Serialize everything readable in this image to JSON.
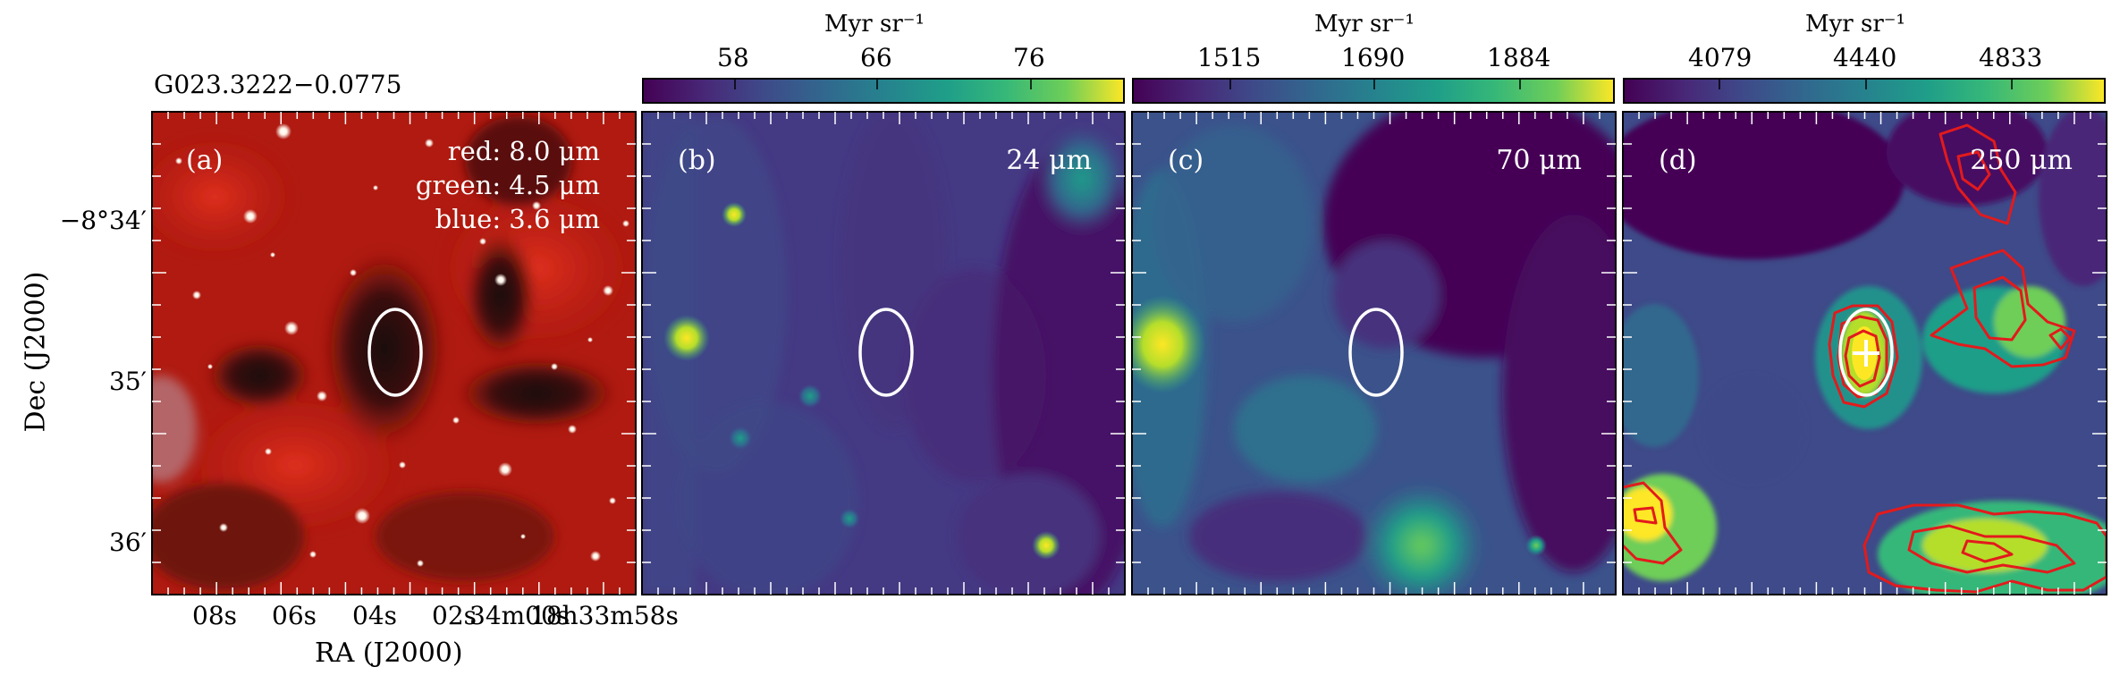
{
  "figure": {
    "source_name": "G023.3222−0.0775",
    "x_axis_label": "RA (J2000)",
    "y_axis_label": "Dec (J2000)",
    "ra_tick_labels": [
      "08s",
      "06s",
      "04s",
      "02s",
      "34m00s",
      "18h33m58s"
    ],
    "dec_tick_labels": [
      "−8°34′",
      "35′",
      "36′"
    ]
  },
  "panels": [
    {
      "letter": "(a)",
      "kind": "rgb",
      "band_labels": [
        "red: 8.0 μm",
        "green: 4.5 μm",
        "blue: 3.6 μm"
      ],
      "colors": {
        "base": "#b01a10",
        "dark": "#2a0d0a"
      }
    },
    {
      "letter": "(b)",
      "kind": "map",
      "wavelength": "24 μm",
      "colorbar": {
        "unit": "Myr sr⁻¹",
        "ticks": [
          "58",
          "66",
          "76"
        ],
        "range": [
          53,
          83
        ]
      },
      "colors": {
        "base": "#443983"
      }
    },
    {
      "letter": "(c)",
      "kind": "map",
      "wavelength": "70 μm",
      "colorbar": {
        "unit": "Myr sr⁻¹",
        "ticks": [
          "1515",
          "1690",
          "1884"
        ],
        "range": [
          1420,
          2010
        ]
      },
      "colors": {
        "base": "#3b528b"
      }
    },
    {
      "letter": "(d)",
      "kind": "map",
      "wavelength": "250 μm",
      "colorbar": {
        "unit": "Myr sr⁻¹",
        "ticks": [
          "4079",
          "4440",
          "4833"
        ],
        "range": [
          3890,
          5100
        ]
      },
      "colors": {
        "base": "#440154",
        "contour": "#e31a1c"
      }
    }
  ],
  "chart_data": {
    "type": "heatmap",
    "colormap": "viridis",
    "colors": {
      "ellipse": "#ffffff",
      "contour": "#e31a1c"
    },
    "target": {
      "marker": "white ellipse",
      "peak_marker": "white cross (panel d)"
    }
  }
}
